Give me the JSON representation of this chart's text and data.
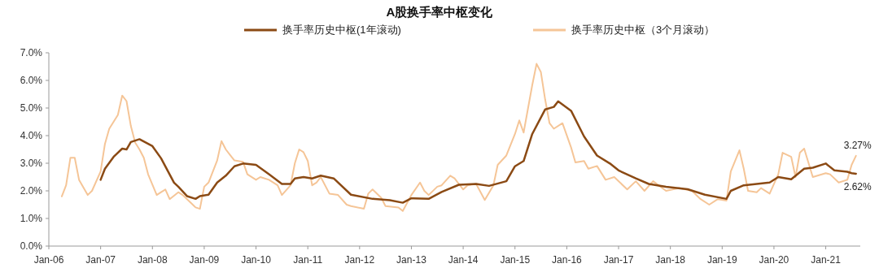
{
  "chart_data": {
    "type": "line",
    "title": "A股换手率中枢变化",
    "legend": "top",
    "marker": "none",
    "line_style": "solid",
    "grid": false,
    "xlim": [
      "2006-01",
      "2021-09"
    ],
    "xticks": [
      {
        "value": "2006-01",
        "label": "Jan-06"
      },
      {
        "value": "2007-01",
        "label": "Jan-07"
      },
      {
        "value": "2008-01",
        "label": "Jan-08"
      },
      {
        "value": "2009-01",
        "label": "Jan-09"
      },
      {
        "value": "2010-01",
        "label": "Jan-10"
      },
      {
        "value": "2011-01",
        "label": "Jan-11"
      },
      {
        "value": "2012-01",
        "label": "Jan-12"
      },
      {
        "value": "2013-01",
        "label": "Jan-13"
      },
      {
        "value": "2014-01",
        "label": "Jan-14"
      },
      {
        "value": "2015-01",
        "label": "Jan-15"
      },
      {
        "value": "2016-01",
        "label": "Jan-16"
      },
      {
        "value": "2017-01",
        "label": "Jan-17"
      },
      {
        "value": "2018-01",
        "label": "Jan-18"
      },
      {
        "value": "2019-01",
        "label": "Jan-19"
      },
      {
        "value": "2020-01",
        "label": "Jan-20"
      },
      {
        "value": "2021-01",
        "label": "Jan-21"
      }
    ],
    "ylim": [
      0,
      7
    ],
    "yticks": [
      {
        "value": 0,
        "label": "0.0%"
      },
      {
        "value": 1,
        "label": "1.0%"
      },
      {
        "value": 2,
        "label": "2.0%"
      },
      {
        "value": 3,
        "label": "3.0%"
      },
      {
        "value": 4,
        "label": "4.0%"
      },
      {
        "value": 5,
        "label": "5.0%"
      },
      {
        "value": 6,
        "label": "6.0%"
      },
      {
        "value": 7,
        "label": "7.0%"
      }
    ],
    "annotations": [
      {
        "text": "3.27%",
        "x": "2021-08",
        "y": 3.27
      },
      {
        "text": "2.62%",
        "x": "2021-08",
        "y": 2.62
      }
    ],
    "series": [
      {
        "name": "换手率历史中枢(1年滚动)",
        "color": "#8b4a14",
        "x": [
          "2007-01",
          "2007-02",
          "2007-04",
          "2007-06",
          "2007-07",
          "2007-08",
          "2007-10",
          "2008-01",
          "2008-03",
          "2008-06",
          "2008-07",
          "2008-09",
          "2008-11",
          "2008-12",
          "2009-02",
          "2009-04",
          "2009-06",
          "2009-08",
          "2009-10",
          "2010-01",
          "2010-04",
          "2010-07",
          "2010-09",
          "2010-10",
          "2010-12",
          "2011-02",
          "2011-04",
          "2011-07",
          "2011-11",
          "2012-04",
          "2012-08",
          "2012-11",
          "2013-01",
          "2013-05",
          "2013-08",
          "2013-12",
          "2014-04",
          "2014-07",
          "2014-11",
          "2015-01",
          "2015-03",
          "2015-05",
          "2015-08",
          "2015-10",
          "2015-11",
          "2016-02",
          "2016-05",
          "2016-08",
          "2016-11",
          "2017-01",
          "2017-05",
          "2017-08",
          "2017-12",
          "2018-05",
          "2018-09",
          "2019-02",
          "2019-03",
          "2019-06",
          "2019-12",
          "2020-02",
          "2020-05",
          "2020-08",
          "2020-10",
          "2021-01",
          "2021-03",
          "2021-06",
          "2021-07",
          "2021-08"
        ],
        "values": [
          2.4,
          2.8,
          3.23,
          3.53,
          3.5,
          3.77,
          3.87,
          3.62,
          3.18,
          2.3,
          2.15,
          1.81,
          1.71,
          1.81,
          1.86,
          2.3,
          2.55,
          2.89,
          2.99,
          2.94,
          2.6,
          2.25,
          2.25,
          2.45,
          2.5,
          2.45,
          2.55,
          2.45,
          1.86,
          1.71,
          1.66,
          1.57,
          1.73,
          1.71,
          1.96,
          2.22,
          2.25,
          2.18,
          2.35,
          2.89,
          3.08,
          4.06,
          4.95,
          5.04,
          5.24,
          4.9,
          3.97,
          3.28,
          2.99,
          2.74,
          2.45,
          2.25,
          2.15,
          2.06,
          1.86,
          1.71,
          2.0,
          2.2,
          2.3,
          2.5,
          2.42,
          2.8,
          2.84,
          2.99,
          2.74,
          2.69,
          2.64,
          2.62
        ]
      },
      {
        "name": "换手率历史中枢（3个月滚动）",
        "color": "#f5c597",
        "x": [
          "2006-04",
          "2006-05",
          "2006-06",
          "2006-07",
          "2006-08",
          "2006-10",
          "2006-11",
          "2007-01",
          "2007-02",
          "2007-03",
          "2007-05",
          "2007-06",
          "2007-07",
          "2007-08",
          "2007-09",
          "2007-10",
          "2007-11",
          "2007-12",
          "2008-02",
          "2008-03",
          "2008-04",
          "2008-05",
          "2008-07",
          "2008-08",
          "2008-10",
          "2008-11",
          "2008-12",
          "2009-01",
          "2009-02",
          "2009-04",
          "2009-05",
          "2009-06",
          "2009-07",
          "2009-08",
          "2009-10",
          "2009-11",
          "2010-01",
          "2010-02",
          "2010-04",
          "2010-06",
          "2010-07",
          "2010-09",
          "2010-10",
          "2010-11",
          "2010-12",
          "2011-01",
          "2011-02",
          "2011-03",
          "2011-04",
          "2011-06",
          "2011-08",
          "2011-10",
          "2011-11",
          "2012-02",
          "2012-03",
          "2012-04",
          "2012-06",
          "2012-07",
          "2012-10",
          "2012-11",
          "2013-01",
          "2013-03",
          "2013-04",
          "2013-05",
          "2013-07",
          "2013-08",
          "2013-10",
          "2013-11",
          "2014-01",
          "2014-02",
          "2014-04",
          "2014-06",
          "2014-08",
          "2014-09",
          "2014-11",
          "2015-01",
          "2015-02",
          "2015-03",
          "2015-05",
          "2015-06",
          "2015-07",
          "2015-08",
          "2015-09",
          "2015-10",
          "2015-12",
          "2016-02",
          "2016-03",
          "2016-05",
          "2016-06",
          "2016-08",
          "2016-10",
          "2016-12",
          "2017-03",
          "2017-05",
          "2017-07",
          "2017-09",
          "2017-12",
          "2018-03",
          "2018-06",
          "2018-08",
          "2018-10",
          "2018-12",
          "2019-02",
          "2019-03",
          "2019-05",
          "2019-06",
          "2019-07",
          "2019-09",
          "2019-10",
          "2019-12",
          "2020-02",
          "2020-03",
          "2020-05",
          "2020-06",
          "2020-07",
          "2020-08",
          "2020-10",
          "2021-01",
          "2021-02",
          "2021-04",
          "2021-06",
          "2021-07",
          "2021-08"
        ],
        "values": [
          1.8,
          2.2,
          3.2,
          3.2,
          2.4,
          1.85,
          2.0,
          2.7,
          3.7,
          4.25,
          4.75,
          5.45,
          5.25,
          4.35,
          3.75,
          3.5,
          3.2,
          2.6,
          1.85,
          1.95,
          2.05,
          1.7,
          1.95,
          1.85,
          1.55,
          1.4,
          1.35,
          2.15,
          2.3,
          3.1,
          3.8,
          3.5,
          3.3,
          3.1,
          3.05,
          2.6,
          2.4,
          2.5,
          2.4,
          2.2,
          1.85,
          2.2,
          3.0,
          3.5,
          3.4,
          3.08,
          2.2,
          2.3,
          2.5,
          1.9,
          1.85,
          1.5,
          1.45,
          1.35,
          1.9,
          2.05,
          1.75,
          1.45,
          1.4,
          1.27,
          1.85,
          2.3,
          2.0,
          1.85,
          2.15,
          2.2,
          2.55,
          2.45,
          2.05,
          2.2,
          2.25,
          1.67,
          2.2,
          2.94,
          3.28,
          4.06,
          4.55,
          4.11,
          5.83,
          6.6,
          6.3,
          5.3,
          4.45,
          4.25,
          4.45,
          3.57,
          3.03,
          3.08,
          2.8,
          2.9,
          2.4,
          2.5,
          2.05,
          2.35,
          2.0,
          2.35,
          2.0,
          2.1,
          2.0,
          1.7,
          1.5,
          1.7,
          1.65,
          2.7,
          3.47,
          2.8,
          2.0,
          1.95,
          2.1,
          1.9,
          2.6,
          3.38,
          3.23,
          2.5,
          3.38,
          3.53,
          2.5,
          2.64,
          2.6,
          2.3,
          2.4,
          2.94,
          3.27
        ]
      }
    ]
  }
}
